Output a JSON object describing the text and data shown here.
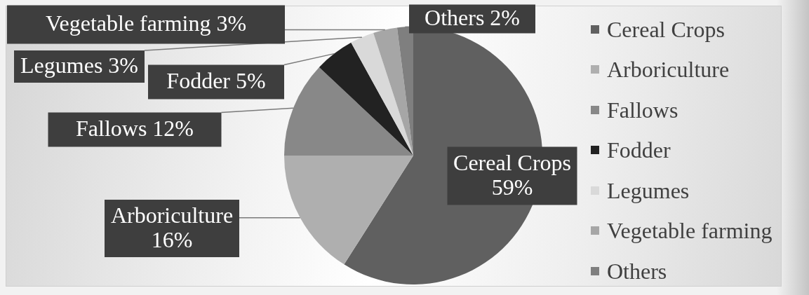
{
  "chart_data": {
    "type": "pie",
    "categories": [
      "Cereal Crops",
      "Arboriculture",
      "Fallows",
      "Fodder",
      "Legumes",
      "Vegetable farming",
      "Others"
    ],
    "values": [
      59,
      16,
      12,
      5,
      3,
      3,
      2
    ],
    "value_labels": [
      "59%",
      "16%",
      "12%",
      "5%",
      "3%",
      "3%",
      "2%"
    ],
    "colors": [
      "#606060",
      "#afafaf",
      "#888888",
      "#222222",
      "#d9d9d9",
      "#a6a6a6",
      "#7f7f7f"
    ],
    "legend": "right"
  }
}
